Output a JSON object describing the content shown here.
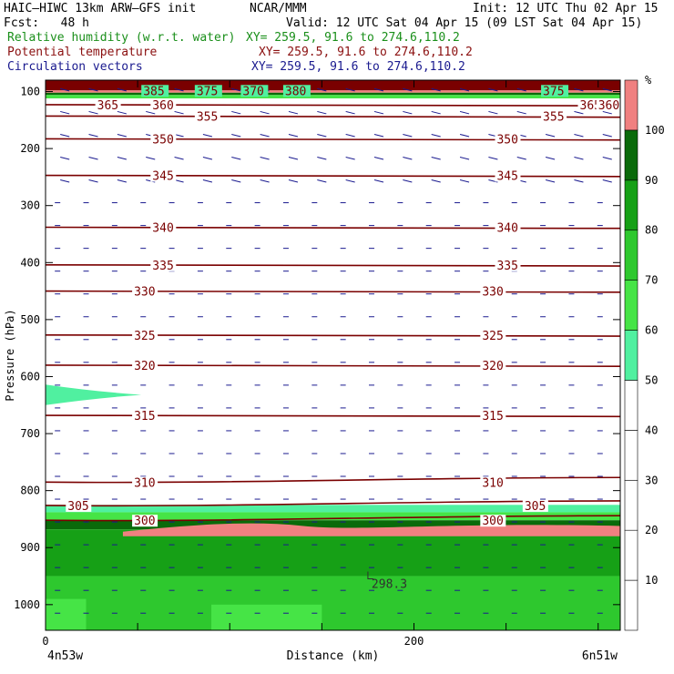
{
  "header": {
    "model": "HAIC–HIWC 13km ARW–GFS init",
    "org": "NCAR/MMM",
    "init": "Init: 12 UTC Thu 02 Apr 15",
    "fcst": "Fcst:   48 h",
    "valid": "Valid: 12 UTC Sat 04 Apr 15 (09 LST Sat 04 Apr 15)",
    "fields": [
      {
        "label": "Relative humidity (w.r.t. water)",
        "xy": "XY= 259.5, 91.6 to 274.6,110.2",
        "color": "#1a8f1a"
      },
      {
        "label": "Potential temperature",
        "xy": "XY= 259.5, 91.6 to 274.6,110.2",
        "color": "#8b1010"
      },
      {
        "label": "Circulation vectors",
        "xy": "XY= 259.5, 91.6 to 274.6,110.2",
        "color": "#1a1a8f"
      }
    ]
  },
  "chart_data": {
    "type": "heatmap",
    "ylabel": "Pressure (hPa)",
    "xlabel": "Distance (km)",
    "x_endpoints": {
      "left": "4n53w",
      "right": "6n51w"
    },
    "xlim": [
      0,
      312
    ],
    "x_ticks": [
      0,
      200
    ],
    "ylim": [
      1045,
      80
    ],
    "y_ticks": [
      100,
      200,
      300,
      400,
      500,
      600,
      700,
      800,
      900,
      1000
    ],
    "colorbar": {
      "unit": "%",
      "levels": [
        10,
        20,
        30,
        40,
        50,
        60,
        70,
        80,
        90,
        100
      ],
      "colors": [
        "#ffffff",
        "#ffffff",
        "#ffffff",
        "#ffffff",
        "#ffffff",
        "#50f0a0",
        "#46e446",
        "#2ec82e",
        "#16a016",
        "#0a6a0a",
        "#f08080"
      ]
    },
    "rh_layers": [
      {
        "p_top": 80,
        "p_bot": 98,
        "color": "#7a0000"
      },
      {
        "p_top": 98,
        "p_bot": 102,
        "color": "#f08080"
      },
      {
        "p_top": 102,
        "p_bot": 106,
        "color": "#0a6a0a"
      },
      {
        "p_top": 106,
        "p_bot": 112,
        "color": "#46e446"
      },
      {
        "p_top": 825,
        "p_bot": 838,
        "color": "#50f0a0"
      },
      {
        "p_top": 838,
        "p_bot": 852,
        "color": "#46e446"
      },
      {
        "p_top": 852,
        "p_bot": 868,
        "color": "#0a6a0a"
      },
      {
        "p_top": 868,
        "p_bot": 950,
        "color": "#16a016"
      },
      {
        "p_top": 950,
        "p_bot": 1045,
        "color": "#2ec82e"
      }
    ],
    "theta_contours": [
      {
        "value": 360,
        "p": 123,
        "labels": [
          [
            28,
            "365"
          ],
          [
            58,
            "360"
          ],
          [
            290,
            "365"
          ],
          [
            300,
            "360"
          ]
        ]
      },
      {
        "value": 355,
        "p": 143,
        "labels": [
          [
            82,
            "355"
          ],
          [
            270,
            "355"
          ]
        ]
      },
      {
        "value": 350,
        "p": 183,
        "labels": [
          [
            58,
            "350"
          ],
          [
            245,
            "350"
          ]
        ]
      },
      {
        "value": 345,
        "p": 247,
        "labels": [
          [
            58,
            "345"
          ],
          [
            245,
            "345"
          ]
        ]
      },
      {
        "value": 340,
        "p": 338,
        "labels": [
          [
            58,
            "340"
          ],
          [
            245,
            "340"
          ]
        ]
      },
      {
        "value": 335,
        "p": 404,
        "labels": [
          [
            58,
            "335"
          ],
          [
            245,
            "335"
          ]
        ]
      },
      {
        "value": 330,
        "p": 450,
        "labels": [
          [
            48,
            "330"
          ],
          [
            237,
            "330"
          ]
        ]
      },
      {
        "value": 325,
        "p": 527,
        "labels": [
          [
            48,
            "325"
          ],
          [
            237,
            "325"
          ]
        ]
      },
      {
        "value": 320,
        "p": 580,
        "labels": [
          [
            48,
            "320"
          ],
          [
            237,
            "320"
          ]
        ]
      },
      {
        "value": 315,
        "p": 668,
        "labels": [
          [
            48,
            "315"
          ],
          [
            237,
            "315"
          ]
        ]
      },
      {
        "value": 310,
        "p": 785,
        "labels": [
          [
            48,
            "310"
          ],
          [
            237,
            "310"
          ]
        ]
      },
      {
        "value": 305,
        "p": 826,
        "labels": [
          [
            12,
            "305"
          ],
          [
            260,
            "305"
          ]
        ]
      },
      {
        "value": 300,
        "p": 852,
        "labels": [
          [
            48,
            "300"
          ],
          [
            237,
            "300"
          ]
        ]
      }
    ],
    "top_labels": [
      [
        53,
        "385"
      ],
      [
        82,
        "375"
      ],
      [
        107,
        "370"
      ],
      [
        130,
        "380"
      ],
      [
        270,
        "375"
      ]
    ],
    "annotation": {
      "x": 175,
      "p": 942,
      "text": "298.3"
    },
    "moist_tongue": {
      "x_tip": 52,
      "p_center": 632,
      "p_halfwidth": 18
    }
  }
}
